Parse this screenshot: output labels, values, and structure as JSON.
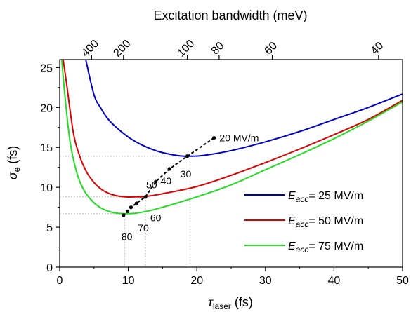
{
  "chart_data": {
    "type": "line",
    "title": "",
    "top_axis": {
      "label": "Excitation bandwidth (meV)",
      "ticks": [
        {
          "label": "400",
          "tau": 4.65
        },
        {
          "label": "200",
          "tau": 9.3
        },
        {
          "label": "100",
          "tau": 18.6
        },
        {
          "label": "80",
          "tau": 23.25
        },
        {
          "label": "60",
          "tau": 31.0
        },
        {
          "label": "40",
          "tau": 46.5
        }
      ]
    },
    "xlabel": {
      "symbol": "τ",
      "sub": "laser",
      "unit": " (fs)"
    },
    "ylabel": {
      "symbol": "σ",
      "sub": "e",
      "unit": " (fs)"
    },
    "xlim": [
      0,
      50
    ],
    "ylim": [
      0,
      26
    ],
    "xticks": [
      0,
      10,
      20,
      30,
      40,
      50
    ],
    "yticks": [
      0,
      5,
      10,
      15,
      20,
      25
    ],
    "legend_position": "bottom-right",
    "series": [
      {
        "name_prefix": "E",
        "name_sub": "acc",
        "name_suffix": "= 25 MV/m",
        "color": "#0000cc",
        "points": [
          [
            3.8,
            26
          ],
          [
            5,
            21.6
          ],
          [
            6,
            19.9
          ],
          [
            7,
            18.6
          ],
          [
            8,
            17.7
          ],
          [
            10,
            16.3
          ],
          [
            12,
            15.3
          ],
          [
            14,
            14.6
          ],
          [
            16,
            14.15
          ],
          [
            17.5,
            13.95
          ],
          [
            19,
            13.9
          ],
          [
            21,
            14.0
          ],
          [
            25,
            14.6
          ],
          [
            30,
            15.7
          ],
          [
            35,
            17.0
          ],
          [
            40,
            18.5
          ],
          [
            45,
            20.0
          ],
          [
            50,
            21.7
          ]
        ]
      },
      {
        "name_prefix": "E",
        "name_sub": "acc",
        "name_suffix": "= 50 MV/m",
        "color": "#dd0000",
        "points": [
          [
            0.5,
            26
          ],
          [
            1,
            23
          ],
          [
            2,
            16.8
          ],
          [
            3,
            13.7
          ],
          [
            4,
            11.8
          ],
          [
            5,
            10.6
          ],
          [
            6,
            9.8
          ],
          [
            7,
            9.3
          ],
          [
            8,
            9.0
          ],
          [
            9.5,
            8.8
          ],
          [
            11,
            8.8
          ],
          [
            12.5,
            8.85
          ],
          [
            15,
            9.2
          ],
          [
            20,
            10.1
          ],
          [
            25,
            11.5
          ],
          [
            30,
            13.1
          ],
          [
            35,
            14.8
          ],
          [
            40,
            16.6
          ],
          [
            45,
            18.5
          ],
          [
            50,
            20.9
          ]
        ]
      },
      {
        "name_prefix": "E",
        "name_sub": "acc",
        "name_suffix": "= 75 MV/m",
        "color": "#22dd22",
        "points": [
          [
            0.3,
            26
          ],
          [
            0.7,
            22
          ],
          [
            1.5,
            15.8
          ],
          [
            2.5,
            11.8
          ],
          [
            3.5,
            9.7
          ],
          [
            4.5,
            8.5
          ],
          [
            5.5,
            7.7
          ],
          [
            6.5,
            7.2
          ],
          [
            7.5,
            6.9
          ],
          [
            8.5,
            6.75
          ],
          [
            9.5,
            6.7
          ],
          [
            11,
            6.75
          ],
          [
            13,
            7.05
          ],
          [
            15,
            7.5
          ],
          [
            20,
            8.8
          ],
          [
            25,
            10.3
          ],
          [
            30,
            12.2
          ],
          [
            35,
            14.1
          ],
          [
            40,
            16.1
          ],
          [
            45,
            18.3
          ],
          [
            50,
            20.7
          ]
        ]
      }
    ],
    "optimum_line": {
      "points": [
        [
          22.5,
          16.2
        ],
        [
          18.6,
          13.9
        ],
        [
          16,
          12.3
        ],
        [
          14,
          10.7
        ],
        [
          12.5,
          8.8
        ],
        [
          11.2,
          8.0
        ],
        [
          10.4,
          7.5
        ],
        [
          9.9,
          7.0
        ],
        [
          9.3,
          6.5
        ]
      ],
      "labels": [
        {
          "text": "20 MV/m",
          "at": [
            23.3,
            16.2
          ]
        },
        {
          "text": "30",
          "at": [
            17.6,
            11.7
          ]
        },
        {
          "text": "40",
          "at": [
            14.7,
            10.8
          ]
        },
        {
          "text": "50",
          "at": [
            12.6,
            10.3
          ]
        },
        {
          "text": "60",
          "at": [
            13.2,
            6.2
          ]
        },
        {
          "text": "70",
          "at": [
            11.4,
            4.9
          ]
        },
        {
          "text": "80",
          "at": [
            9.0,
            3.8
          ]
        }
      ]
    },
    "guide_lines": [
      {
        "x": 9.5,
        "y": 6.7
      },
      {
        "x": 12.5,
        "y": 8.8
      },
      {
        "x": 19,
        "y": 13.9
      }
    ]
  }
}
